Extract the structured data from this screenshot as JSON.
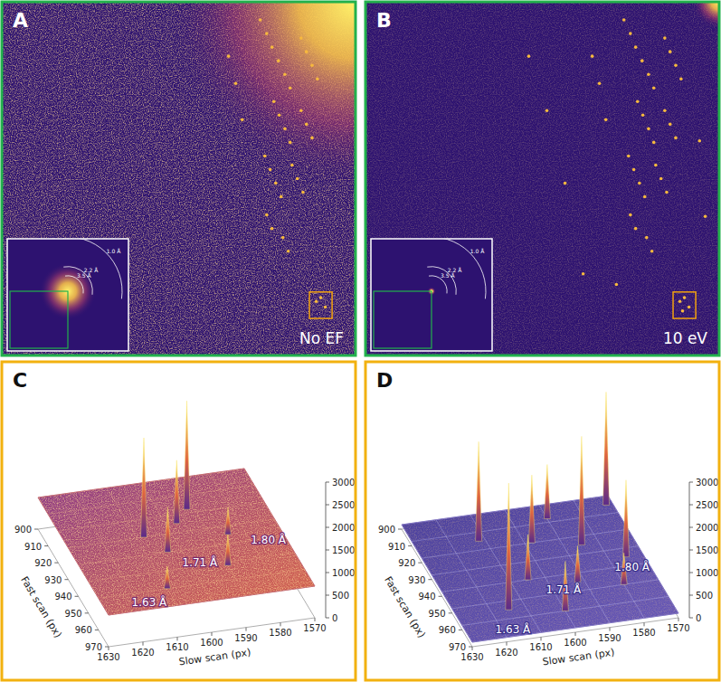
{
  "chart_data": [
    {
      "type": "image",
      "panel": "A",
      "label": "No EF",
      "xlim": [
        756,
        1692
      ],
      "ylim": [
        132,
        1068
      ],
      "tick_labels": false,
      "background": 700,
      "color": "#f7b93e",
      "spots": {
        "x": [
          1440,
          1457,
          1471,
          1488,
          1505,
          1519,
          1476,
          1490,
          1505,
          1519,
          1452,
          1466,
          1481,
          1495,
          1457,
          1471,
          1548,
          1562,
          1577,
          1591,
          1548,
          1562,
          1577,
          1524,
          1538,
          1553,
          1500,
          1514,
          1356,
          1375,
          1392,
          1588,
          1600,
          1612
        ],
        "y": [
          180,
          216,
          252,
          288,
          324,
          360,
          396,
          432,
          468,
          504,
          540,
          576,
          612,
          648,
          696,
          732,
          228,
          264,
          300,
          336,
          420,
          456,
          492,
          564,
          600,
          636,
          756,
          792,
          276,
          348,
          444,
          925,
          915,
          940
        ]
      },
      "roi": {
        "xlim": [
          1570,
          1630
        ],
        "ylim": [
          900,
          970
        ]
      },
      "rings": [
        {
          "value": 1.0,
          "label": "1.0 Å"
        },
        {
          "value": 2.2,
          "label": "2.2 Å"
        },
        {
          "value": 3.5,
          "label": "3.5 Å"
        }
      ]
    },
    {
      "type": "image",
      "panel": "B",
      "label": "10 eV",
      "xlim": [
        756,
        1692
      ],
      "ylim": [
        132,
        1068
      ],
      "tick_labels": false,
      "background": 100,
      "color": "#f7b93e",
      "spots": {
        "x": [
          1440,
          1457,
          1471,
          1488,
          1505,
          1519,
          1476,
          1490,
          1505,
          1519,
          1452,
          1466,
          1481,
          1495,
          1457,
          1471,
          1548,
          1562,
          1577,
          1591,
          1548,
          1562,
          1577,
          1524,
          1538,
          1553,
          1500,
          1514,
          1356,
          1375,
          1392,
          1588,
          1600,
          1612,
          1236,
          1284,
          1332,
          1188,
          1420,
          1640,
          1655,
          1595
        ],
        "y": [
          180,
          216,
          252,
          288,
          324,
          360,
          396,
          432,
          468,
          504,
          540,
          576,
          612,
          648,
          696,
          732,
          228,
          264,
          300,
          336,
          420,
          456,
          492,
          564,
          600,
          636,
          756,
          792,
          276,
          348,
          444,
          925,
          915,
          940,
          420,
          612,
          852,
          276,
          880,
          500,
          700,
          950
        ]
      },
      "roi": {
        "xlim": [
          1570,
          1630
        ],
        "ylim": [
          900,
          970
        ]
      },
      "rings": [
        {
          "value": 1.0,
          "label": "1.0 Å"
        },
        {
          "value": 2.2,
          "label": "2.2 Å"
        },
        {
          "value": 3.5,
          "label": "3.5 Å"
        }
      ]
    },
    {
      "type": "surface3d",
      "panel": "C",
      "xlabel": "Fast scan (px)",
      "ylabel": "Slow scan (px)",
      "xlim": [
        900,
        970
      ],
      "ylim": [
        1570,
        1630
      ],
      "zlim": [
        0,
        3000
      ],
      "xticks": [
        900,
        910,
        920,
        930,
        940,
        950,
        960,
        970
      ],
      "yticks": [
        1570,
        1580,
        1590,
        1600,
        1610,
        1620,
        1630
      ],
      "zticks": [
        0,
        500,
        1000,
        1500,
        2000,
        2500,
        3000
      ],
      "grid": true,
      "background": 700,
      "peaks": {
        "x": [
          930,
          925,
          918,
          940,
          952,
          935,
          960
        ],
        "y": [
          1608,
          1597,
          1592,
          1604,
          1590,
          1585,
          1610
        ],
        "z": [
          2900,
          2100,
          3100,
          1700,
          1400,
          1300,
          1200
        ]
      },
      "annotations": [
        {
          "text": "1.63 Å",
          "x": 966,
          "y": 1617
        },
        {
          "text": "1.71 Å",
          "x": 948,
          "y": 1597
        },
        {
          "text": "1.80 Å",
          "x": 941,
          "y": 1575
        }
      ]
    },
    {
      "type": "surface3d",
      "panel": "D",
      "xlabel": "Fast scan (px)",
      "ylabel": "Slow scan (px)",
      "xlim": [
        900,
        970
      ],
      "ylim": [
        1570,
        1630
      ],
      "zlim": [
        0,
        3000
      ],
      "xticks": [
        900,
        910,
        920,
        930,
        940,
        950,
        960,
        970
      ],
      "yticks": [
        1570,
        1580,
        1590,
        1600,
        1610,
        1620,
        1630
      ],
      "zticks": [
        0,
        500,
        1000,
        1500,
        2000,
        2500,
        3000
      ],
      "grid": true,
      "background": 100,
      "peaks": {
        "x": [
          915,
          920,
          908,
          925,
          940,
          945,
          935,
          955,
          960,
          950,
          905
        ],
        "y": [
          1612,
          1598,
          1590,
          1585,
          1605,
          1592,
          1575,
          1615,
          1600,
          1580,
          1572
        ],
        "z": [
          2300,
          1600,
          1300,
          2500,
          1100,
          900,
          1800,
          2900,
          1200,
          800,
          2600
        ]
      },
      "annotations": [
        {
          "text": "1.63 Å",
          "x": 966,
          "y": 1617
        },
        {
          "text": "1.71 Å",
          "x": 948,
          "y": 1597
        },
        {
          "text": "1.80 Å",
          "x": 941,
          "y": 1575
        }
      ]
    }
  ]
}
